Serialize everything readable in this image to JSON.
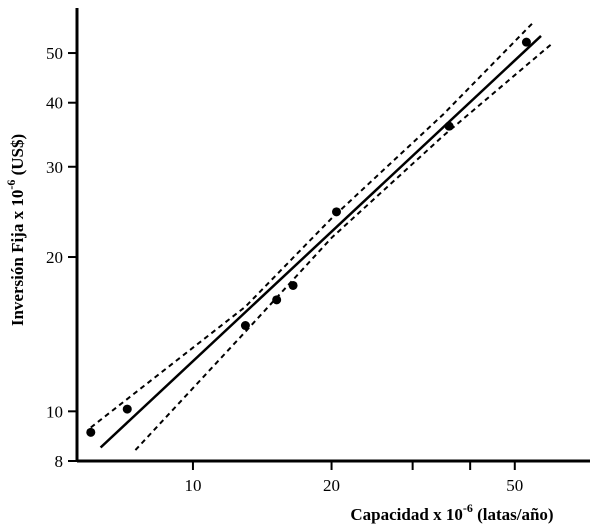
{
  "chart_data": {
    "type": "scatter",
    "title": "",
    "xlabel": {
      "pre": "Capacidad x 10",
      "sup": "-6",
      "post": " (latas/año)"
    },
    "ylabel": {
      "pre": "Inversión Fija  x  10",
      "sup": "-6",
      "post": " (US$)"
    },
    "x_scale": "log",
    "y_scale": "log",
    "xlim": [
      5.6,
      63
    ],
    "ylim": [
      8,
      58
    ],
    "x_ticks": [
      10,
      20,
      50
    ],
    "x_minor_ticks": [
      30,
      40
    ],
    "y_ticks": [
      8,
      10,
      20,
      30,
      40,
      50
    ],
    "grid": false,
    "legend": "none",
    "series": [
      {
        "role": "observations",
        "x": [
          6.0,
          7.2,
          13.0,
          15.2,
          16.5,
          20.5,
          36.0,
          53.0
        ],
        "y": [
          9.1,
          10.1,
          14.7,
          16.5,
          17.6,
          24.5,
          36.0,
          52.5
        ]
      },
      {
        "role": "regression-fit",
        "x": [
          6.3,
          57.0
        ],
        "y": [
          8.5,
          54.0
        ]
      },
      {
        "role": "upper-confidence-band",
        "x": [
          6.0,
          13.0,
          20.0,
          35.0,
          55.0
        ],
        "y": [
          9.3,
          16.0,
          23.8,
          38.0,
          57.5
        ]
      },
      {
        "role": "lower-confidence-band",
        "x": [
          7.5,
          13.0,
          20.0,
          35.0,
          60.0
        ],
        "y": [
          8.4,
          14.3,
          21.8,
          34.5,
          52.0
        ]
      }
    ],
    "colors": {
      "ink": "#000000",
      "background": "#ffffff"
    }
  }
}
